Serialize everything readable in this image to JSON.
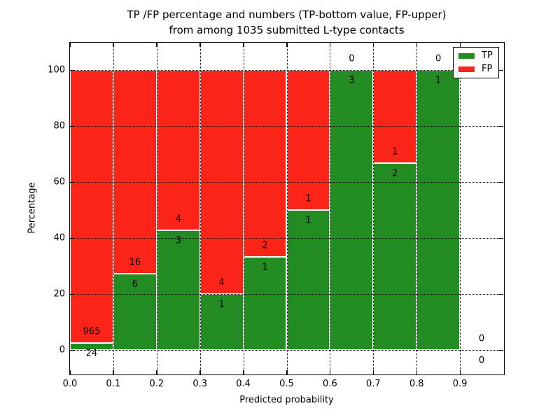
{
  "title": {
    "line1": "TP /FP percentage and numbers (TP-bottom value, FP-upper)",
    "line2": "from among 1035 submitted L-type contacts"
  },
  "chart_data": {
    "type": "bar",
    "subtype": "stacked-percentage",
    "title_line1": "TP /FP percentage and numbers (TP-bottom value, FP-upper)",
    "title_line2": "from among 1035 submitted L-type contacts",
    "xlabel": "Predicted probability",
    "ylabel": "Percentage",
    "xlim": [
      0.0,
      1.0
    ],
    "ylim": [
      -9,
      110
    ],
    "x_ticks": [
      "0.0",
      "0.1",
      "0.2",
      "0.3",
      "0.4",
      "0.5",
      "0.6",
      "0.7",
      "0.8",
      "0.9"
    ],
    "y_ticks": [
      "0",
      "20",
      "40",
      "60",
      "80",
      "100"
    ],
    "grid": true,
    "total_contacts": 1035,
    "legend": {
      "position": "upper right",
      "items": [
        {
          "label": "TP",
          "color": "#228b22"
        },
        {
          "label": "FP",
          "color": "#fa2418"
        }
      ]
    },
    "bins": [
      {
        "x_start": 0.0,
        "x_end": 0.1,
        "tp": 24,
        "fp": 965,
        "tp_pct": 2.4
      },
      {
        "x_start": 0.1,
        "x_end": 0.2,
        "tp": 6,
        "fp": 16,
        "tp_pct": 27.3
      },
      {
        "x_start": 0.2,
        "x_end": 0.3,
        "tp": 3,
        "fp": 4,
        "tp_pct": 42.9
      },
      {
        "x_start": 0.3,
        "x_end": 0.4,
        "tp": 1,
        "fp": 4,
        "tp_pct": 20.0
      },
      {
        "x_start": 0.4,
        "x_end": 0.5,
        "tp": 1,
        "fp": 2,
        "tp_pct": 33.3
      },
      {
        "x_start": 0.5,
        "x_end": 0.6,
        "tp": 1,
        "fp": 1,
        "tp_pct": 50.0
      },
      {
        "x_start": 0.6,
        "x_end": 0.7,
        "tp": 3,
        "fp": 0,
        "tp_pct": 100.0
      },
      {
        "x_start": 0.7,
        "x_end": 0.8,
        "tp": 2,
        "fp": 1,
        "tp_pct": 66.7
      },
      {
        "x_start": 0.8,
        "x_end": 0.9,
        "tp": 1,
        "fp": 0,
        "tp_pct": 100.0
      },
      {
        "x_start": 0.9,
        "x_end": 1.0,
        "tp": 0,
        "fp": 0,
        "tp_pct": null
      }
    ],
    "colors": {
      "tp": "#228b22",
      "fp": "#fa2418",
      "grid": "#000000",
      "background": "#ffffff",
      "bar_edge": "#ffffff"
    }
  }
}
